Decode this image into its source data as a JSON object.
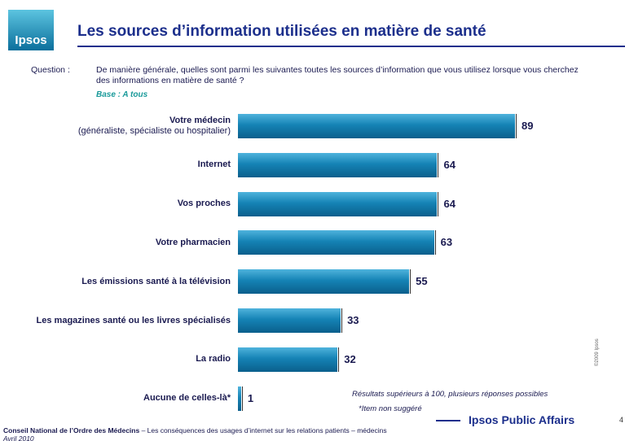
{
  "header": {
    "logo": "Ipsos",
    "title": "Les sources d’information utilisées en matière de santé"
  },
  "question": {
    "label": "Question :",
    "text": "De manière générale, quelles sont parmi les suivantes toutes les sources d’information que vous utilisez lorsque vous cherchez des informations en matière de santé ?",
    "base": "Base : A tous"
  },
  "chart_data": {
    "type": "barh",
    "categories": [
      "Votre médecin",
      "Internet",
      "Vos proches",
      "Votre pharmacien",
      "Les émissions santé à la télévision",
      "Les magazines santé ou les livres spécialisés",
      "La radio",
      "Aucune de celles-là*"
    ],
    "category_notes": {
      "0": "(généraliste, spécialiste ou hospitalier)"
    },
    "values": [
      89,
      64,
      64,
      63,
      55,
      33,
      32,
      1
    ],
    "color": "#1583b5"
  },
  "notes": [
    "Résultats supérieurs à 100, plusieurs réponses possibles",
    "*Item non suggéré"
  ],
  "footer": {
    "client": "Conseil National de l’Ordre des Médecins",
    "subject": " – Les conséquences des usages d’internet sur les relations patients – médecins",
    "date": "Avril 2010",
    "brand": "Ipsos Public Affairs",
    "page": "4",
    "copyright": "©2009 Ipsos"
  }
}
